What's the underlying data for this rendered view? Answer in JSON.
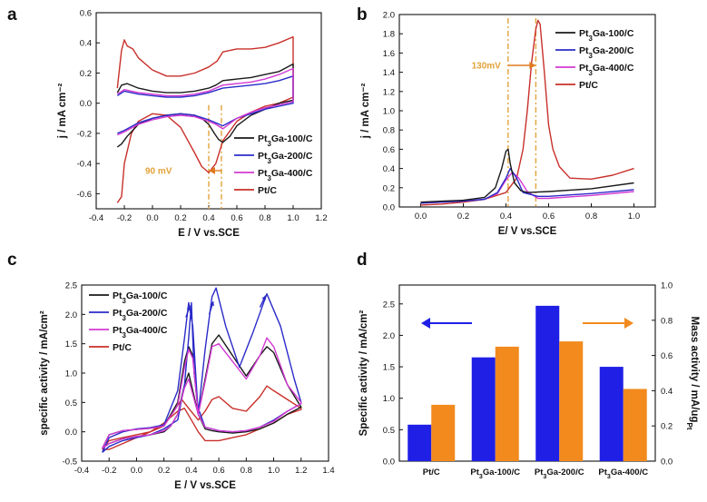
{
  "colors": {
    "pt3ga100": "#1a1a1a",
    "pt3ga200": "#2b2bc8",
    "pt3ga400": "#d23ad2",
    "ptc": "#c8302a",
    "guide": "#e3a23a",
    "arrow": "#e07a1f",
    "bar_specific": "#1f1fe6",
    "bar_mass": "#f28a1e"
  },
  "chart_data": [
    {
      "panel": "a",
      "type": "line",
      "xlabel": "E / V vs.SCE",
      "ylabel": "j / mA cm⁻²",
      "xlim": [
        -0.4,
        1.2
      ],
      "ylim": [
        -0.7,
        0.6
      ],
      "xticks": [
        "-0.4",
        "-0.2",
        "0.0",
        "0.2",
        "0.4",
        "0.6",
        "0.8",
        "1.0",
        "1.2"
      ],
      "yticks": [
        "-0.6",
        "-0.4",
        "-0.2",
        "0.0",
        "0.2",
        "0.4",
        "0.6"
      ],
      "annotation": "90 mV",
      "guide_lines_x": [
        0.4,
        0.49
      ],
      "legend_position": "lower-right",
      "series": [
        {
          "name": "Pt3Ga-100/C",
          "color_key": "pt3ga100",
          "x": [
            -0.25,
            -0.22,
            -0.18,
            -0.1,
            0.0,
            0.1,
            0.2,
            0.3,
            0.4,
            0.45,
            0.5,
            0.6,
            0.7,
            0.8,
            0.9,
            1.0,
            1.0,
            0.9,
            0.8,
            0.7,
            0.6,
            0.55,
            0.5,
            0.47,
            0.44,
            0.4,
            0.35,
            0.3,
            0.2,
            0.1,
            0.0,
            -0.1,
            -0.18,
            -0.22,
            -0.25
          ],
          "y": [
            0.07,
            0.12,
            0.13,
            0.1,
            0.08,
            0.07,
            0.07,
            0.08,
            0.1,
            0.12,
            0.15,
            0.16,
            0.17,
            0.19,
            0.21,
            0.26,
            0.02,
            0.0,
            -0.04,
            -0.08,
            -0.15,
            -0.22,
            -0.26,
            -0.24,
            -0.2,
            -0.14,
            -0.1,
            -0.08,
            -0.07,
            -0.08,
            -0.1,
            -0.14,
            -0.22,
            -0.27,
            -0.29
          ]
        },
        {
          "name": "Pt3Ga-200/C",
          "color_key": "pt3ga200",
          "x": [
            -0.25,
            -0.2,
            -0.1,
            0.0,
            0.1,
            0.2,
            0.3,
            0.4,
            0.5,
            0.6,
            0.7,
            0.8,
            0.9,
            1.0,
            1.0,
            0.9,
            0.8,
            0.7,
            0.6,
            0.5,
            0.45,
            0.4,
            0.3,
            0.2,
            0.1,
            0.0,
            -0.1,
            -0.2,
            -0.25
          ],
          "y": [
            0.05,
            0.08,
            0.06,
            0.05,
            0.04,
            0.04,
            0.05,
            0.07,
            0.1,
            0.11,
            0.12,
            0.13,
            0.15,
            0.18,
            0.0,
            -0.02,
            -0.04,
            -0.07,
            -0.1,
            -0.15,
            -0.13,
            -0.11,
            -0.08,
            -0.07,
            -0.08,
            -0.1,
            -0.13,
            -0.18,
            -0.2
          ]
        },
        {
          "name": "Pt3Ga-400/C",
          "color_key": "pt3ga400",
          "x": [
            -0.25,
            -0.2,
            -0.1,
            0.0,
            0.1,
            0.2,
            0.3,
            0.4,
            0.5,
            0.6,
            0.7,
            0.8,
            0.9,
            1.0,
            1.0,
            0.9,
            0.8,
            0.7,
            0.6,
            0.5,
            0.45,
            0.4,
            0.3,
            0.2,
            0.1,
            0.0,
            -0.1,
            -0.2,
            -0.25
          ],
          "y": [
            0.06,
            0.09,
            0.07,
            0.06,
            0.05,
            0.05,
            0.06,
            0.08,
            0.12,
            0.13,
            0.14,
            0.16,
            0.19,
            0.23,
            0.01,
            -0.01,
            -0.03,
            -0.06,
            -0.1,
            -0.17,
            -0.14,
            -0.12,
            -0.09,
            -0.08,
            -0.09,
            -0.11,
            -0.14,
            -0.19,
            -0.21
          ]
        },
        {
          "name": "Pt/C",
          "color_key": "ptc",
          "x": [
            -0.25,
            -0.22,
            -0.2,
            -0.18,
            -0.14,
            -0.1,
            0.0,
            0.1,
            0.2,
            0.3,
            0.4,
            0.46,
            0.5,
            0.6,
            0.7,
            0.8,
            0.9,
            1.0,
            1.0,
            0.9,
            0.8,
            0.7,
            0.6,
            0.5,
            0.45,
            0.4,
            0.35,
            0.3,
            0.2,
            0.1,
            0.0,
            -0.1,
            -0.15,
            -0.2,
            -0.22,
            -0.25
          ],
          "y": [
            0.1,
            0.35,
            0.42,
            0.38,
            0.36,
            0.3,
            0.22,
            0.18,
            0.18,
            0.2,
            0.24,
            0.28,
            0.34,
            0.36,
            0.36,
            0.37,
            0.4,
            0.44,
            0.04,
            0.0,
            -0.02,
            -0.06,
            -0.12,
            -0.25,
            -0.4,
            -0.46,
            -0.42,
            -0.33,
            -0.16,
            -0.08,
            -0.07,
            -0.12,
            -0.2,
            -0.4,
            -0.62,
            -0.66
          ]
        }
      ]
    },
    {
      "panel": "b",
      "type": "line",
      "xlabel": "E/ V vs.SCE",
      "ylabel": "j / mA cm⁻²",
      "xlim": [
        -0.1,
        1.1
      ],
      "ylim": [
        0.0,
        2.0
      ],
      "xticks": [
        "0.0",
        "0.2",
        "0.4",
        "0.6",
        "0.8",
        "1.0"
      ],
      "yticks": [
        "0.0",
        "0.2",
        "0.4",
        "0.6",
        "0.8",
        "1.0",
        "1.2",
        "1.4",
        "1.6",
        "1.8",
        "2.0"
      ],
      "annotation": "130mV",
      "guide_lines_x": [
        0.41,
        0.54
      ],
      "legend_position": "top-right",
      "series": [
        {
          "name": "Pt3Ga-100/C",
          "color_key": "pt3ga100",
          "x": [
            0.0,
            0.1,
            0.2,
            0.3,
            0.35,
            0.38,
            0.4,
            0.41,
            0.42,
            0.44,
            0.47,
            0.5,
            0.6,
            0.8,
            1.0
          ],
          "y": [
            0.05,
            0.06,
            0.07,
            0.1,
            0.2,
            0.4,
            0.58,
            0.6,
            0.45,
            0.25,
            0.17,
            0.15,
            0.16,
            0.19,
            0.25
          ]
        },
        {
          "name": "Pt3Ga-200/C",
          "color_key": "pt3ga200",
          "x": [
            0.0,
            0.1,
            0.2,
            0.3,
            0.36,
            0.4,
            0.42,
            0.45,
            0.48,
            0.55,
            0.6,
            0.8,
            1.0
          ],
          "y": [
            0.04,
            0.05,
            0.06,
            0.08,
            0.15,
            0.3,
            0.4,
            0.3,
            0.15,
            0.11,
            0.11,
            0.14,
            0.18
          ]
        },
        {
          "name": "Pt3Ga-400/C",
          "color_key": "pt3ga400",
          "x": [
            0.0,
            0.1,
            0.2,
            0.3,
            0.36,
            0.4,
            0.43,
            0.46,
            0.5,
            0.55,
            0.6,
            0.8,
            1.0
          ],
          "y": [
            0.04,
            0.05,
            0.06,
            0.08,
            0.14,
            0.28,
            0.36,
            0.3,
            0.16,
            0.09,
            0.09,
            0.12,
            0.16
          ]
        },
        {
          "name": "Pt/C",
          "color_key": "ptc",
          "x": [
            0.0,
            0.1,
            0.2,
            0.3,
            0.4,
            0.45,
            0.48,
            0.5,
            0.52,
            0.54,
            0.55,
            0.56,
            0.58,
            0.6,
            0.62,
            0.65,
            0.7,
            0.8,
            0.9,
            1.0
          ],
          "y": [
            0.02,
            0.03,
            0.05,
            0.08,
            0.15,
            0.3,
            0.6,
            1.0,
            1.5,
            1.85,
            1.94,
            1.9,
            1.4,
            0.85,
            0.6,
            0.42,
            0.3,
            0.29,
            0.33,
            0.4
          ]
        }
      ]
    },
    {
      "panel": "c",
      "type": "line",
      "xlabel": "E / V vs.SCE",
      "ylabel": "specific activity / mA/cm²",
      "xlim": [
        -0.4,
        1.4
      ],
      "ylim": [
        -0.5,
        2.5
      ],
      "xticks": [
        "-0.4",
        "-0.2",
        "0.0",
        "0.2",
        "0.4",
        "0.6",
        "0.8",
        "1.0",
        "1.2",
        "1.4"
      ],
      "yticks": [
        "-0.5",
        "0.0",
        "0.5",
        "1.0",
        "1.5",
        "2.0",
        "2.5"
      ],
      "legend_position": "top-left",
      "series": [
        {
          "name": "Pt3Ga-100/C",
          "color_key": "pt3ga100",
          "x": [
            -0.25,
            -0.2,
            -0.1,
            0.0,
            0.1,
            0.2,
            0.3,
            0.35,
            0.38,
            0.41,
            0.45,
            0.5,
            0.55,
            0.6,
            0.7,
            0.8,
            0.9,
            0.95,
            1.0,
            1.1,
            1.2,
            1.2,
            1.1,
            1.0,
            0.9,
            0.8,
            0.7,
            0.6,
            0.55,
            0.5,
            0.45,
            0.42,
            0.38,
            0.35,
            0.3,
            0.25,
            0.2,
            0.1,
            0.0,
            -0.1,
            -0.2,
            -0.25
          ],
          "y": [
            -0.28,
            -0.05,
            0.02,
            0.04,
            0.06,
            0.1,
            0.5,
            1.2,
            1.45,
            1.3,
            0.3,
            0.9,
            1.5,
            1.65,
            1.3,
            0.95,
            1.3,
            1.45,
            1.35,
            0.8,
            0.42,
            0.42,
            0.3,
            0.15,
            0.05,
            0.0,
            -0.02,
            0.0,
            0.02,
            0.05,
            0.3,
            0.6,
            1.0,
            0.8,
            0.3,
            0.1,
            0.0,
            -0.05,
            -0.08,
            -0.12,
            -0.2,
            -0.28
          ]
        },
        {
          "name": "Pt3Ga-200/C",
          "color_key": "pt3ga200",
          "x": [
            -0.25,
            -0.2,
            -0.1,
            0.0,
            0.1,
            0.2,
            0.3,
            0.35,
            0.38,
            0.41,
            0.45,
            0.5,
            0.55,
            0.58,
            0.65,
            0.75,
            0.85,
            0.95,
            1.05,
            1.15,
            1.2,
            1.2,
            1.1,
            1.0,
            0.9,
            0.8,
            0.7,
            0.6,
            0.55,
            0.5,
            0.45,
            0.42,
            0.4,
            0.38,
            0.35,
            0.3,
            0.2,
            0.1,
            0.0,
            -0.1,
            -0.2,
            -0.25
          ],
          "y": [
            -0.35,
            -0.1,
            0.0,
            0.05,
            0.07,
            0.12,
            0.7,
            1.6,
            2.2,
            1.8,
            0.3,
            1.4,
            2.3,
            2.45,
            1.8,
            1.1,
            1.7,
            2.35,
            1.8,
            0.9,
            0.5,
            0.48,
            0.35,
            0.2,
            0.08,
            0.02,
            0.0,
            0.02,
            0.05,
            0.08,
            0.4,
            1.0,
            2.2,
            1.6,
            0.8,
            0.2,
            0.05,
            -0.05,
            -0.1,
            -0.15,
            -0.25,
            -0.35
          ]
        },
        {
          "name": "Pt3Ga-400/C",
          "color_key": "pt3ga400",
          "x": [
            -0.25,
            -0.2,
            -0.1,
            0.0,
            0.1,
            0.2,
            0.3,
            0.35,
            0.38,
            0.41,
            0.45,
            0.5,
            0.55,
            0.6,
            0.7,
            0.8,
            0.9,
            0.95,
            1.0,
            1.1,
            1.2,
            1.2,
            1.1,
            1.0,
            0.9,
            0.8,
            0.7,
            0.6,
            0.55,
            0.5,
            0.45,
            0.42,
            0.38,
            0.35,
            0.3,
            0.25,
            0.2,
            0.1,
            0.0,
            -0.1,
            -0.2,
            -0.25
          ],
          "y": [
            -0.28,
            -0.05,
            0.02,
            0.04,
            0.06,
            0.1,
            0.45,
            1.1,
            1.4,
            1.25,
            0.3,
            0.85,
            1.45,
            1.5,
            1.2,
            0.9,
            1.3,
            1.6,
            1.45,
            0.8,
            0.5,
            0.48,
            0.35,
            0.18,
            0.08,
            0.02,
            0.0,
            0.02,
            0.05,
            0.08,
            0.3,
            0.55,
            0.9,
            0.75,
            0.3,
            0.1,
            0.02,
            -0.05,
            -0.08,
            -0.12,
            -0.2,
            -0.28
          ]
        },
        {
          "name": "Pt/C",
          "color_key": "ptc",
          "x": [
            -0.25,
            -0.2,
            -0.1,
            0.0,
            0.1,
            0.2,
            0.3,
            0.33,
            0.38,
            0.45,
            0.5,
            0.55,
            0.6,
            0.7,
            0.8,
            0.9,
            0.95,
            1.0,
            1.1,
            1.2,
            1.2,
            1.1,
            1.0,
            0.9,
            0.8,
            0.7,
            0.6,
            0.5,
            0.45,
            0.4,
            0.35,
            0.3,
            0.2,
            0.1,
            0.0,
            -0.1,
            -0.2,
            -0.25
          ],
          "y": [
            -0.3,
            -0.15,
            -0.1,
            -0.05,
            0.0,
            0.1,
            0.45,
            0.55,
            0.4,
            0.2,
            0.35,
            0.55,
            0.6,
            0.4,
            0.35,
            0.6,
            0.78,
            0.7,
            0.55,
            0.4,
            0.38,
            0.3,
            0.15,
            0.05,
            -0.05,
            -0.1,
            -0.15,
            -0.15,
            0.0,
            0.2,
            0.4,
            0.35,
            0.15,
            0.0,
            -0.1,
            -0.2,
            -0.3,
            -0.3
          ]
        }
      ]
    },
    {
      "panel": "d",
      "type": "bar",
      "categories": [
        "Pt/C",
        "Pt3Ga-100/C",
        "Pt3Ga-200/C",
        "Pt3Ga-400/C"
      ],
      "ylabel": "Specific activity / mA/cm²",
      "y2label": "Mass activity / mA/ug",
      "y2label_sub": "Pt",
      "ylim": [
        0.0,
        2.8
      ],
      "y2lim": [
        0.0,
        1.0
      ],
      "yticks": [
        "0.0",
        "0.5",
        "1.0",
        "1.5",
        "2.0",
        "2.5"
      ],
      "y2ticks": [
        "0.0",
        "0.2",
        "0.4",
        "0.6",
        "0.8",
        "1.0"
      ],
      "series": [
        {
          "name": "Specific activity",
          "axis": "left",
          "color_key": "bar_specific",
          "values": [
            0.58,
            1.65,
            2.47,
            1.5
          ]
        },
        {
          "name": "Mass activity",
          "axis": "right",
          "color_key": "bar_mass",
          "values": [
            0.32,
            0.65,
            0.68,
            0.41
          ]
        }
      ]
    }
  ],
  "panel_labels": [
    "a",
    "b",
    "c",
    "d"
  ]
}
